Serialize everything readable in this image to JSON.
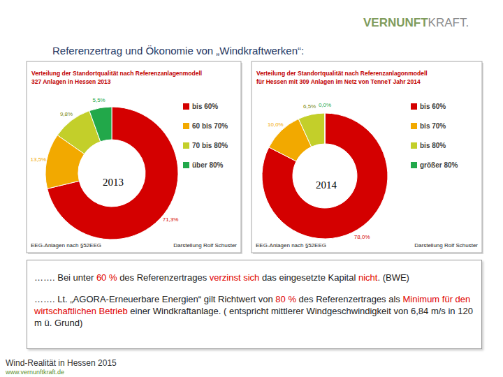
{
  "header": {
    "logo": [
      "VERNUNFT",
      "KRAFT."
    ],
    "title": "Referenzertrag und Ökonomie von „Windkraftwerken“:"
  },
  "chart_data": [
    {
      "type": "pie",
      "title": "Verteilung der Standortqualität nach Referenzanlagenmodell",
      "subtitle": "327 Anlagen in Hessen 2013",
      "categories": [
        "bis 60%",
        "60 bis 70%",
        "70 bis 80%",
        "über 80%"
      ],
      "values": [
        71.3,
        13.5,
        9.8,
        5.5
      ],
      "value_labels": [
        "71,3%",
        "13,5%",
        "9,8%",
        "5,5%"
      ],
      "colors": [
        "#d40000",
        "#f2a900",
        "#c3cf2a",
        "#22a84a"
      ],
      "data_labels": true,
      "legend": "right",
      "annotation": "2013",
      "notes": [
        "EEG-Anlagen nach §52EEG",
        "Darstellung Rolf Schuster"
      ]
    },
    {
      "type": "pie",
      "title": "Verteilung der Standortqualität nach Referenzanlagonmodell",
      "subtitle": "für Hessen mit 309 Anlagen im Netz von TenneT Jahr 2014",
      "categories": [
        "bis 60%",
        "bis 70%",
        "bis 80%",
        "größer 80%"
      ],
      "values": [
        78.0,
        10.0,
        6.5,
        0.0
      ],
      "value_labels": [
        "78,0%",
        "10,0%",
        "6,5%",
        "0,0%"
      ],
      "colors": [
        "#d40000",
        "#f2a900",
        "#c3cf2a",
        "#22a84a"
      ],
      "data_labels": true,
      "legend": "right",
      "annotation": "2014",
      "notes": [
        "EEG-Anlagen nach §52EEG",
        "Darstellung Rolf Schuster"
      ]
    }
  ],
  "text_box": {
    "paragraphs": [
      {
        "runs": [
          {
            "text": "……. Bei unter ",
            "emphasis": false
          },
          {
            "text": "60 %",
            "emphasis": true
          },
          {
            "text": " des Referenzertrages ",
            "emphasis": false
          },
          {
            "text": "verzinst sich",
            "emphasis": true
          },
          {
            "text": " das eingesetzte Kapital ",
            "emphasis": false
          },
          {
            "text": "nicht",
            "emphasis": true
          },
          {
            "text": ". (BWE)",
            "emphasis": false
          }
        ]
      },
      {
        "runs": [
          {
            "text": "……. Lt. „AGORA-Erneuerbare Energien“ gilt Richtwert von ",
            "emphasis": false
          },
          {
            "text": "80 %",
            "emphasis": true
          },
          {
            "text": " des Referenzertrages als ",
            "emphasis": false
          },
          {
            "text": "Minimum für den wirtschaftlichen Betrieb",
            "emphasis": true
          },
          {
            "text": " einer Windkraftanlage. ( entspricht mittlerer Windgeschwindigkeit von 6,84 m/s in 120 m ü. Grund)",
            "emphasis": false
          }
        ]
      }
    ]
  },
  "footer": {
    "title": "Wind-Realität in Hessen 2015",
    "url": "www.vernunftkraft.de"
  }
}
